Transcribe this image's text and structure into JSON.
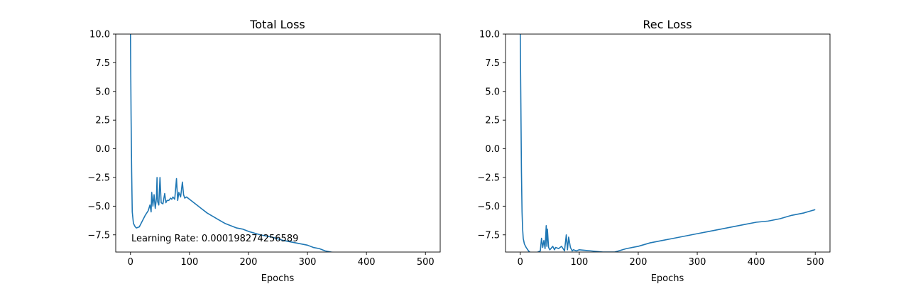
{
  "chart_data": [
    {
      "type": "line",
      "title": "Total Loss",
      "xlabel": "Epochs",
      "ylabel": "",
      "xlim": [
        -25,
        525
      ],
      "ylim": [
        -9.0,
        10.0
      ],
      "xticks": [
        0,
        100,
        200,
        300,
        400,
        500
      ],
      "xtick_labels": [
        "0",
        "100",
        "200",
        "300",
        "400",
        "500"
      ],
      "yticks": [
        10.0,
        7.5,
        5.0,
        2.5,
        0.0,
        -2.5,
        -5.0,
        -7.5
      ],
      "ytick_labels": [
        "10.0",
        "7.5",
        "5.0",
        "2.5",
        "0.0",
        "−2.5",
        "−5.0",
        "−7.5"
      ],
      "annotation": "Learning Rate: 0.000198274256589",
      "series": [
        {
          "color": "#1f77b4",
          "x": [
            0,
            1,
            2,
            3,
            5,
            8,
            10,
            15,
            20,
            25,
            30,
            33,
            35,
            36,
            38,
            40,
            42,
            44,
            45,
            46,
            48,
            50,
            52,
            55,
            58,
            60,
            62,
            65,
            68,
            70,
            72,
            75,
            78,
            80,
            82,
            85,
            88,
            90,
            92,
            95,
            100,
            110,
            120,
            130,
            140,
            150,
            160,
            170,
            180,
            190,
            200,
            220,
            240,
            260,
            280,
            300,
            310,
            320,
            330,
            340,
            350
          ],
          "y": [
            10.0,
            3.0,
            -2.0,
            -5.5,
            -6.5,
            -6.8,
            -6.9,
            -6.8,
            -6.3,
            -5.8,
            -5.4,
            -4.9,
            -5.5,
            -3.8,
            -5.0,
            -4.0,
            -5.2,
            -4.3,
            -2.5,
            -4.6,
            -4.9,
            -2.5,
            -4.7,
            -4.8,
            -3.9,
            -4.7,
            -4.5,
            -4.5,
            -4.3,
            -4.4,
            -4.2,
            -4.4,
            -2.6,
            -4.5,
            -3.8,
            -4.2,
            -2.9,
            -4.0,
            -4.3,
            -4.2,
            -4.4,
            -4.8,
            -5.2,
            -5.6,
            -5.9,
            -6.2,
            -6.5,
            -6.7,
            -6.9,
            -7.0,
            -7.2,
            -7.5,
            -7.7,
            -8.0,
            -8.2,
            -8.4,
            -8.6,
            -8.7,
            -8.9,
            -9.0,
            -9.1
          ]
        }
      ]
    },
    {
      "type": "line",
      "title": "Rec Loss",
      "xlabel": "Epochs",
      "ylabel": "",
      "xlim": [
        -25,
        525
      ],
      "ylim": [
        -9.0,
        10.0
      ],
      "xticks": [
        0,
        100,
        200,
        300,
        400,
        500
      ],
      "xtick_labels": [
        "0",
        "100",
        "200",
        "300",
        "400",
        "500"
      ],
      "yticks": [
        10.0,
        7.5,
        5.0,
        2.5,
        0.0,
        -2.5,
        -5.0,
        -7.5
      ],
      "ytick_labels": [
        "10.0",
        "7.5",
        "5.0",
        "2.5",
        "0.0",
        "−2.5",
        "−5.0",
        "−7.5"
      ],
      "series": [
        {
          "color": "#1f77b4",
          "x": [
            0,
            1,
            2,
            3,
            4,
            5,
            7,
            10,
            14,
            18,
            22,
            26,
            30,
            34,
            36,
            38,
            40,
            42,
            44,
            45,
            46,
            48,
            50,
            52,
            55,
            58,
            60,
            65,
            70,
            75,
            78,
            80,
            82,
            85,
            88,
            90,
            95,
            100,
            120,
            140,
            160,
            180,
            200,
            220,
            240,
            260,
            280,
            300,
            320,
            340,
            360,
            380,
            400,
            420,
            440,
            460,
            480,
            500
          ],
          "y": [
            10.0,
            4.0,
            -2.0,
            -5.5,
            -7.0,
            -7.8,
            -8.3,
            -8.6,
            -8.9,
            -9.1,
            -9.2,
            -9.1,
            -9.0,
            -8.9,
            -7.8,
            -8.6,
            -8.0,
            -8.7,
            -6.7,
            -8.5,
            -7.0,
            -8.6,
            -8.8,
            -8.7,
            -8.5,
            -8.8,
            -8.6,
            -8.7,
            -8.5,
            -8.9,
            -7.5,
            -8.8,
            -7.7,
            -8.6,
            -8.9,
            -8.8,
            -8.9,
            -8.8,
            -8.9,
            -9.0,
            -9.0,
            -8.7,
            -8.5,
            -8.2,
            -8.0,
            -7.8,
            -7.6,
            -7.4,
            -7.2,
            -7.0,
            -6.8,
            -6.6,
            -6.4,
            -6.3,
            -6.1,
            -5.8,
            -5.6,
            -5.3
          ]
        }
      ]
    }
  ]
}
